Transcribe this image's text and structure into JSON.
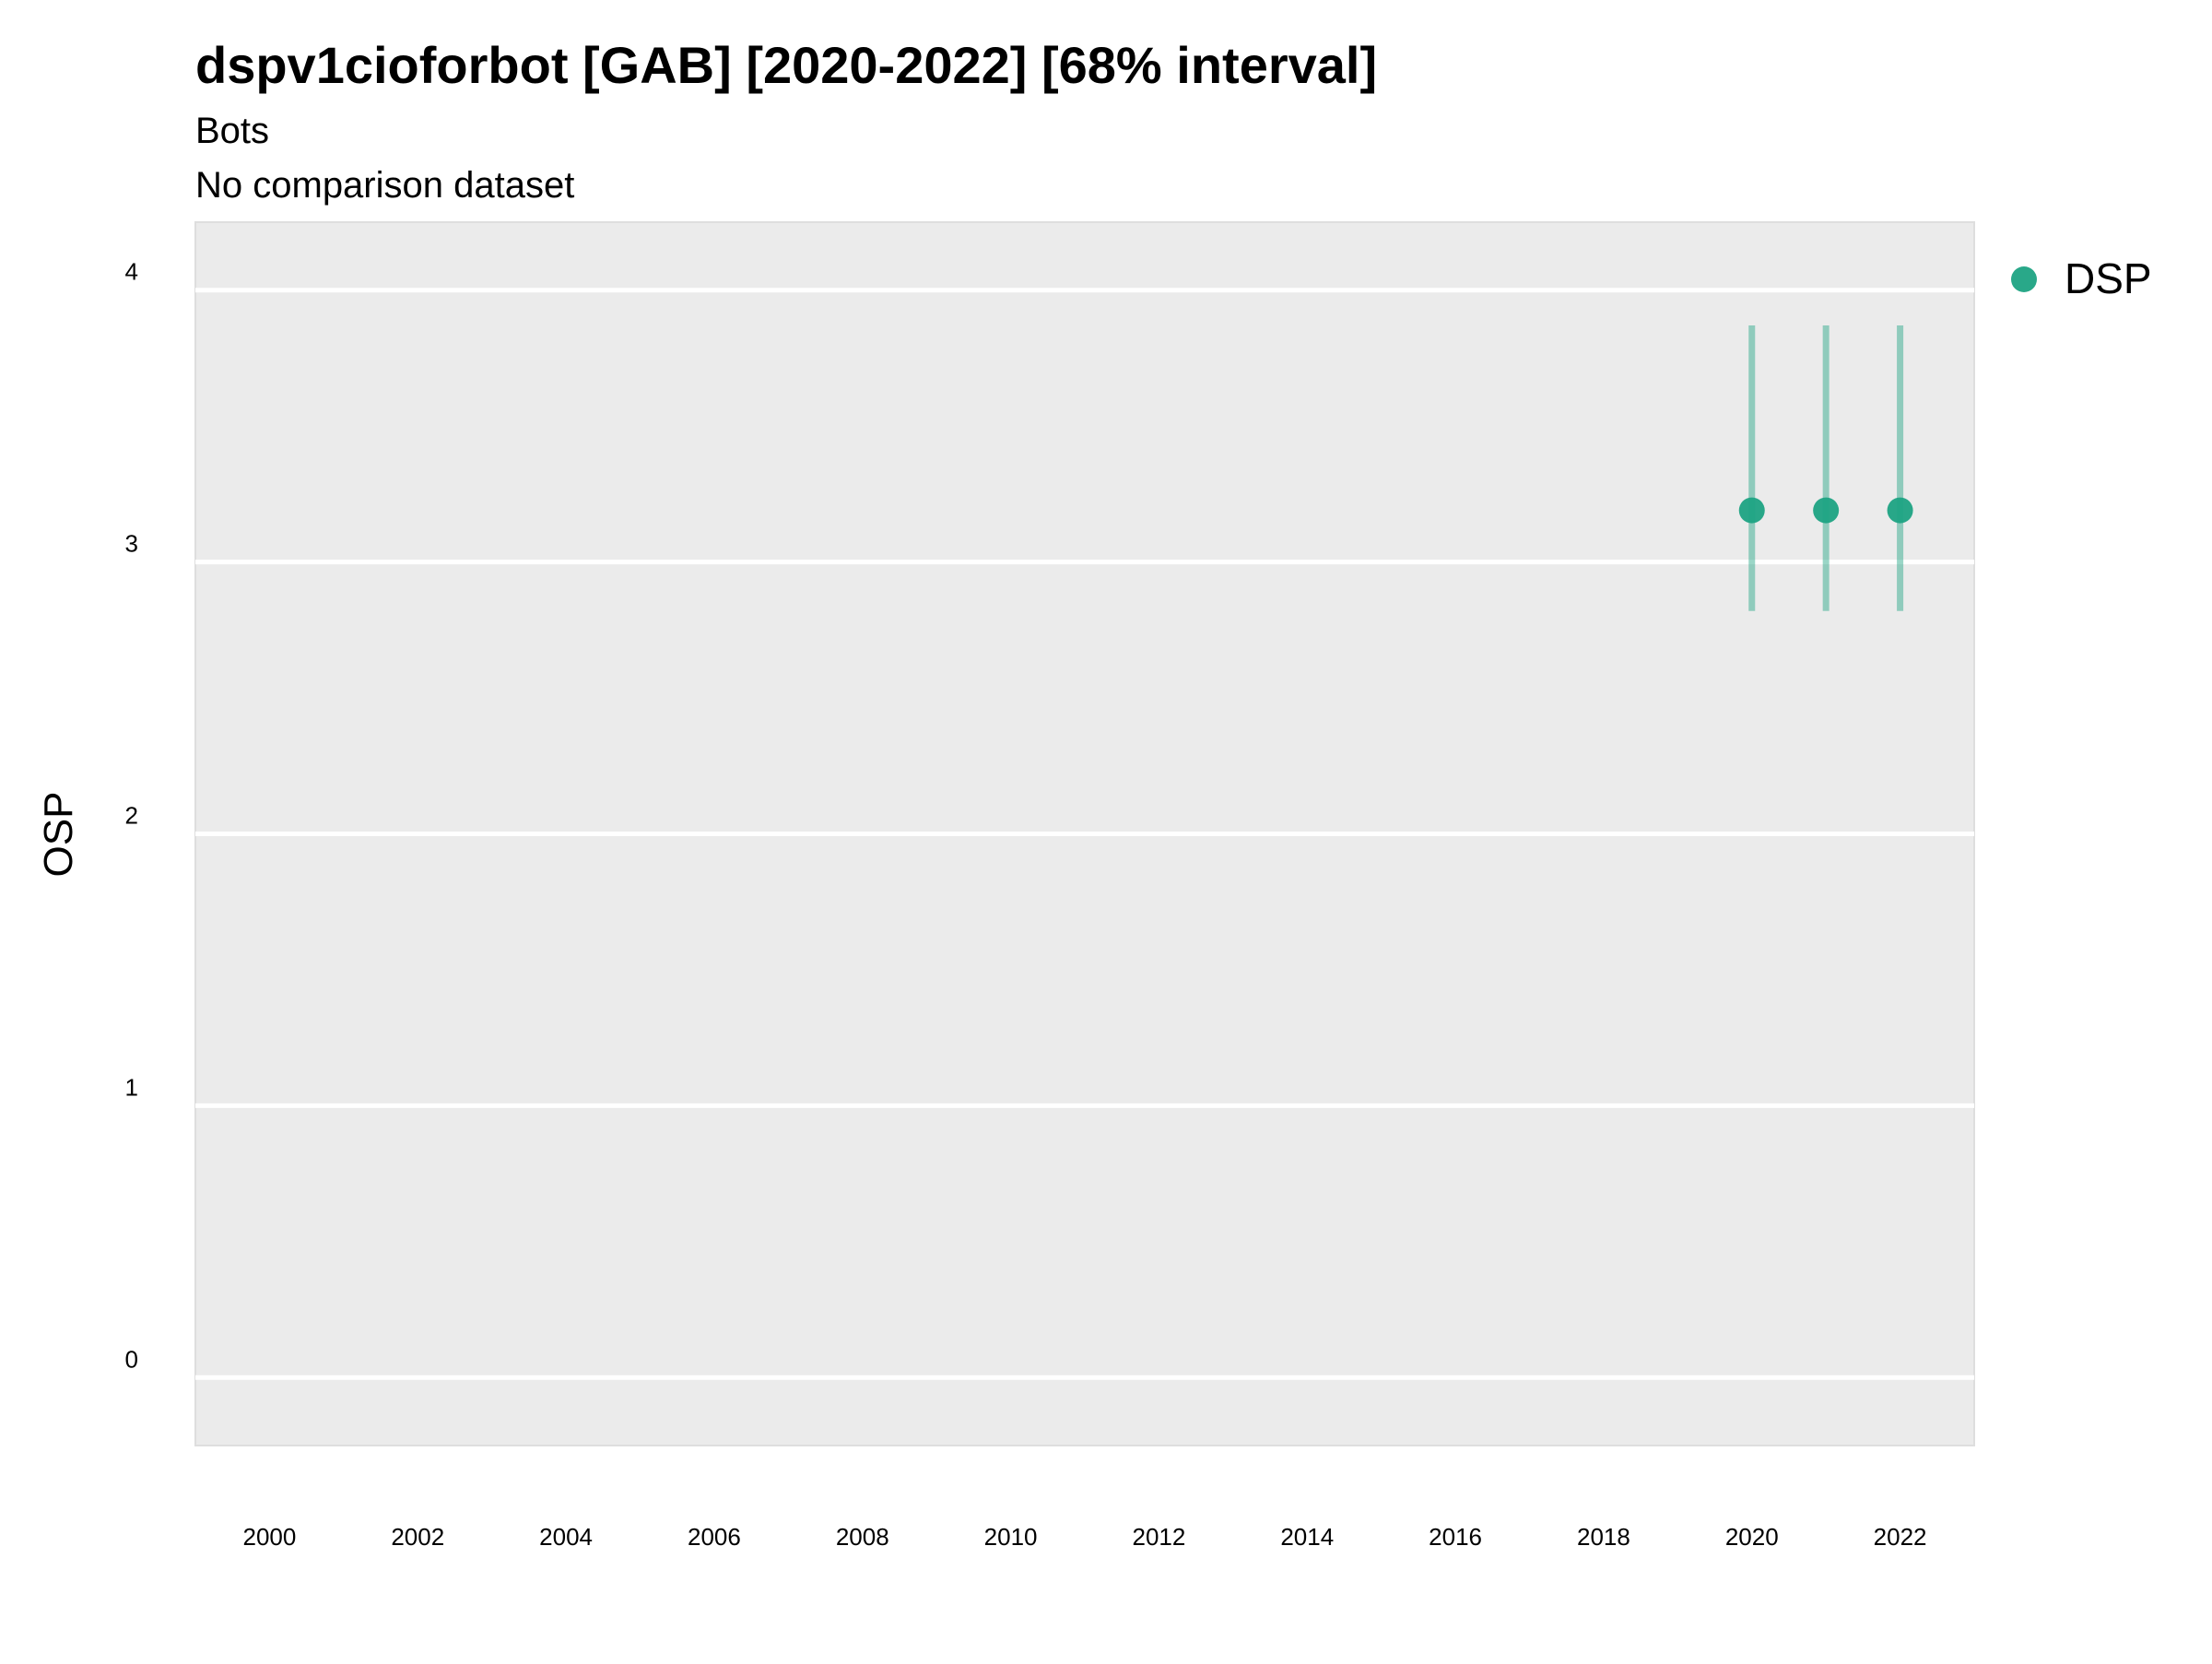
{
  "chart_data": {
    "type": "scatter",
    "title": "dspv1cioforbot [GAB] [2020-2022] [68% interval]",
    "subtitle_lines": [
      "Bots",
      "No comparison dataset"
    ],
    "xlabel": "",
    "ylabel": "OSP",
    "xlim": [
      1999,
      2023
    ],
    "ylim": [
      -0.25,
      4.25
    ],
    "x_ticks": [
      2000,
      2002,
      2004,
      2006,
      2008,
      2010,
      2012,
      2014,
      2016,
      2018,
      2020,
      2022
    ],
    "y_ticks": [
      0,
      1,
      2,
      3,
      4
    ],
    "grid": true,
    "legend_position": "right",
    "series": [
      {
        "name": "DSP",
        "color": "#1ea383",
        "points": [
          {
            "x": 2020,
            "y": 3.19,
            "lower": 2.82,
            "upper": 3.87
          },
          {
            "x": 2021,
            "y": 3.19,
            "lower": 2.82,
            "upper": 3.87
          },
          {
            "x": 2022,
            "y": 3.19,
            "lower": 2.82,
            "upper": 3.87
          }
        ]
      }
    ]
  }
}
